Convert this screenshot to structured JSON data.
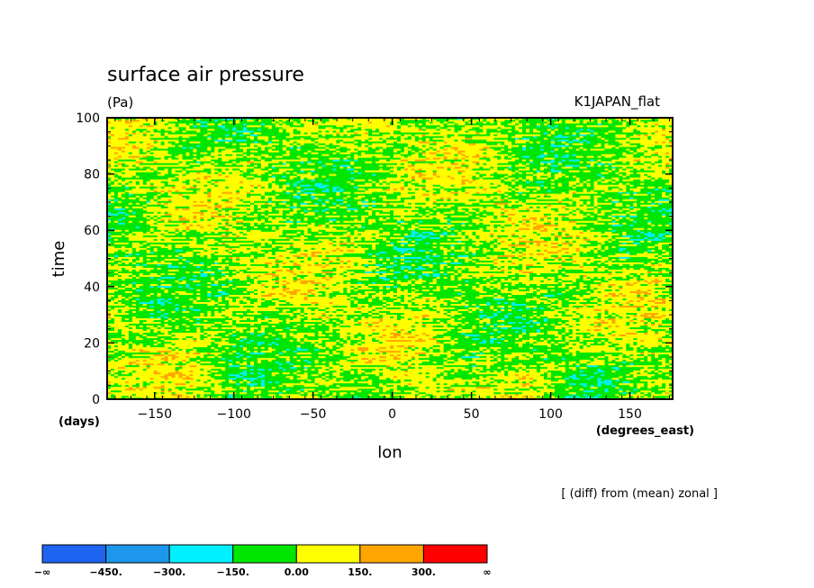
{
  "chart_data": {
    "type": "heatmap",
    "title": "surface air pressure",
    "units": "(Pa)",
    "experiment": "K1JAPAN_flat",
    "xlabel": "lon",
    "ylabel": "time",
    "x_units": "(degrees_east)",
    "y_units": "(days)",
    "xlim": [
      -180,
      177
    ],
    "ylim": [
      0,
      100
    ],
    "x_ticks": [
      -150,
      -100,
      -50,
      0,
      50,
      100,
      150
    ],
    "y_ticks": [
      0,
      20,
      40,
      60,
      80,
      100
    ],
    "x_tick_labels": [
      "−150",
      "−100",
      "−50",
      "0",
      "50",
      "100",
      "150"
    ],
    "y_tick_labels": [
      "0",
      "20",
      "40",
      "60",
      "80",
      "100"
    ],
    "annotation": "[ (diff) from (mean) zonal ]",
    "colorbar": {
      "levels": [
        -450,
        -300,
        -150,
        0,
        150,
        300
      ],
      "labels": [
        "−∞",
        "−450.",
        "−300.",
        "−150.",
        "0.00",
        "150.",
        "300.",
        "∞"
      ],
      "colors": [
        "#1e64f0",
        "#1e96eb",
        "#00f0ff",
        "#00e600",
        "#ffff00",
        "#ffa500",
        "#ff0000"
      ]
    }
  }
}
